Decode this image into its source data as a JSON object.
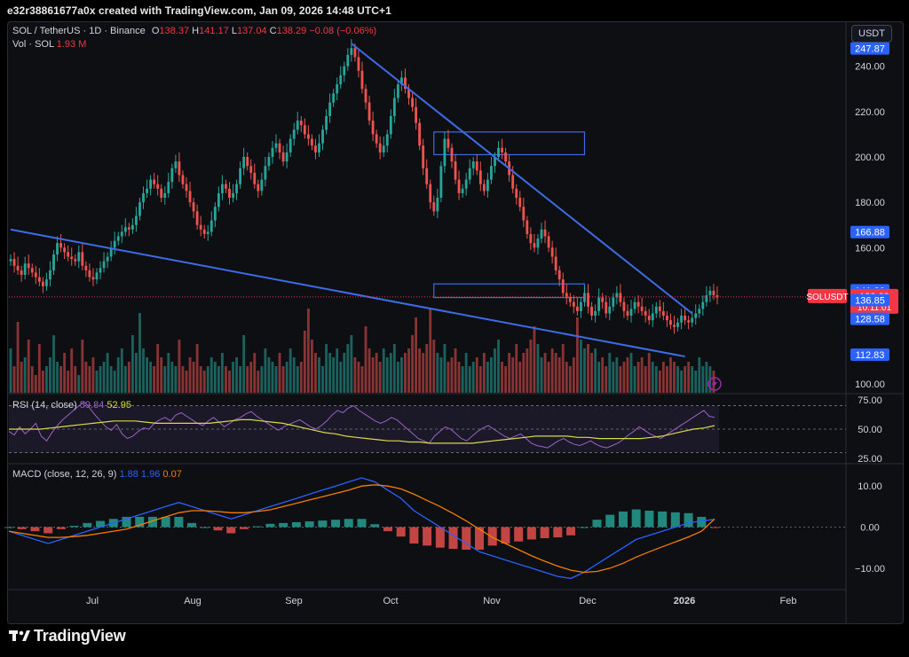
{
  "header": {
    "text": "e32r38861677a0x created with TradingView.com, Jan 09, 2026 14:48 UTC+1"
  },
  "footer": {
    "brand": "TradingView"
  },
  "legend": {
    "symbol": "SOL / TetherUS · 1D · Binance",
    "o_label": "O",
    "o_value": "138.37",
    "h_label": "H",
    "h_value": "141.17",
    "l_label": "L",
    "l_value": "137.04",
    "c_label": "C",
    "c_value": "138.29",
    "change": "−0.08 (−0.06%)",
    "vol_label": "Vol · SOL",
    "vol_value": "1.93 M"
  },
  "currency": "USDT",
  "rsi_legend": {
    "label": "RSI (14, close)",
    "v1": "59.84",
    "v2": "52.95"
  },
  "macd_legend": {
    "label": "MACD (close, 12, 26, 9)",
    "v1": "1.88",
    "v2": "1.96",
    "v3": "0.07"
  },
  "colors": {
    "up": "#26a69a",
    "down": "#ef5350",
    "trend": "#3d6ce8",
    "rsi": "#9a63c9",
    "rsi_ma": "#d9d94a",
    "macd": "#2962ff",
    "signal": "#f57c00",
    "price_tag": "#f23645"
  },
  "chart_data": [
    {
      "type": "candlestick",
      "title": "SOL / TetherUS · 1D · Binance",
      "x_labels": [
        "Jul",
        "Aug",
        "Sep",
        "Oct",
        "Nov",
        "Dec",
        "2026",
        "Feb"
      ],
      "y_ticks": [
        "240.00",
        "220.00",
        "200.00",
        "180.00",
        "160.00",
        "100.00"
      ],
      "price_labels": [
        {
          "text": "247.87",
          "value": 247.87,
          "style": "blue"
        },
        {
          "text": "166.88",
          "value": 166.88,
          "style": "blue"
        },
        {
          "text": "141.20",
          "value": 141.2,
          "style": "blue"
        },
        {
          "text": "139.49",
          "value": 139.49,
          "style": "blue"
        },
        {
          "text": "138.57",
          "value": 138.57,
          "style": "blue"
        },
        {
          "text": "SOLUSDT",
          "value": 138.29,
          "style": "red"
        },
        {
          "text": "136.85",
          "value": 136.85,
          "style": "blue"
        },
        {
          "text": "128.58",
          "value": 128.58,
          "style": "blue"
        },
        {
          "text": "112.83",
          "value": 112.83,
          "style": "blue"
        }
      ],
      "last_price": {
        "symbol": "SOLUSDT",
        "price": "138.29",
        "countdown": "10:11:01"
      },
      "closes": [
        155,
        152,
        150,
        148,
        153,
        151,
        149,
        147,
        145,
        143,
        146,
        150,
        157,
        162,
        160,
        158,
        156,
        155,
        154,
        158,
        152,
        150,
        147,
        146,
        149,
        151,
        154,
        156,
        160,
        163,
        165,
        167,
        169,
        168,
        170,
        174,
        180,
        184,
        186,
        190,
        188,
        186,
        182,
        184,
        189,
        195,
        198,
        192,
        188,
        185,
        180,
        176,
        170,
        168,
        166,
        167,
        172,
        178,
        184,
        188,
        186,
        182,
        184,
        188,
        195,
        200,
        196,
        193,
        188,
        185,
        190,
        196,
        200,
        204,
        206,
        202,
        198,
        202,
        208,
        212,
        216,
        214,
        210,
        208,
        205,
        202,
        206,
        212,
        218,
        224,
        228,
        232,
        236,
        240,
        245,
        248,
        244,
        238,
        230,
        224,
        216,
        210,
        206,
        202,
        205,
        210,
        218,
        226,
        232,
        235,
        230,
        226,
        222,
        215,
        205,
        195,
        188,
        180,
        176,
        182,
        196,
        208,
        204,
        198,
        190,
        184,
        186,
        190,
        195,
        198,
        194,
        188,
        185,
        190,
        196,
        200,
        204,
        202,
        198,
        192,
        186,
        182,
        178,
        172,
        166,
        162,
        160,
        164,
        168,
        165,
        160,
        156,
        150,
        146,
        140,
        138,
        136,
        134,
        132,
        136,
        140,
        134,
        130,
        132,
        138,
        136,
        131,
        134,
        138,
        140,
        136,
        132,
        130,
        133,
        136,
        134,
        132,
        130,
        128,
        131,
        134,
        132,
        130,
        128,
        126,
        125,
        127,
        130,
        128,
        127,
        129,
        131,
        133,
        136,
        139,
        141,
        139,
        138
      ],
      "volume_levels": [
        0.5,
        0.3,
        0.8,
        0.35,
        0.4,
        0.6,
        0.3,
        0.2,
        0.55,
        0.25,
        0.3,
        0.4,
        0.65,
        0.35,
        0.3,
        0.45,
        0.25,
        0.5,
        0.3,
        0.2,
        0.6,
        0.35,
        0.3,
        0.4,
        0.25,
        0.3,
        0.35,
        0.45,
        0.3,
        0.25,
        0.4,
        0.5,
        0.3,
        0.35,
        0.65,
        0.45,
        0.9,
        0.5,
        0.4,
        0.35,
        0.3,
        0.55,
        0.4,
        0.3,
        0.45,
        0.35,
        0.3,
        0.6,
        0.3,
        0.25,
        0.4,
        0.35,
        0.55,
        0.3,
        0.25,
        0.3,
        0.4,
        0.35,
        0.3,
        0.45,
        0.3,
        0.25,
        0.35,
        0.4,
        0.3,
        0.65,
        0.3,
        0.35,
        0.45,
        0.25,
        0.3,
        0.5,
        0.4,
        0.35,
        0.3,
        0.45,
        0.3,
        0.35,
        0.5,
        0.4,
        0.3,
        0.35,
        0.7,
        0.95,
        0.6,
        0.45,
        0.4,
        0.3,
        0.55,
        0.45,
        0.4,
        0.5,
        0.35,
        0.45,
        0.55,
        0.65,
        0.4,
        0.35,
        0.3,
        0.75,
        0.5,
        0.4,
        0.45,
        0.35,
        0.5,
        0.4,
        0.45,
        0.55,
        0.35,
        0.4,
        0.45,
        0.5,
        0.65,
        0.85,
        0.5,
        0.45,
        0.55,
        0.95,
        0.6,
        0.45,
        0.4,
        0.55,
        0.35,
        0.4,
        0.5,
        0.35,
        0.3,
        0.45,
        0.3,
        0.35,
        0.4,
        0.3,
        0.45,
        0.35,
        0.4,
        0.5,
        0.6,
        0.35,
        0.3,
        0.45,
        0.4,
        0.55,
        0.35,
        0.45,
        0.5,
        0.6,
        0.75,
        0.55,
        0.4,
        0.45,
        0.35,
        0.5,
        0.45,
        0.4,
        0.55,
        0.35,
        0.3,
        0.4,
        0.85,
        0.6,
        0.5,
        0.55,
        0.45,
        0.5,
        0.35,
        0.4,
        0.3,
        0.45,
        0.35,
        0.4,
        0.3,
        0.35,
        0.4,
        0.45,
        0.3,
        0.35,
        0.4,
        0.3,
        0.45,
        0.35,
        0.3,
        0.25,
        0.35,
        0.3,
        0.4,
        0.35,
        0.3,
        0.25,
        0.3,
        0.35,
        0.3,
        0.25,
        0.4,
        0.3,
        0.35,
        0.3,
        0.25
      ],
      "trendlines": [
        {
          "name": "upper-trendline",
          "from": [
            95,
            250
          ],
          "to": [
            190,
            131
          ]
        },
        {
          "name": "lower-trendline",
          "from": [
            0,
            168
          ],
          "to": [
            188,
            112
          ]
        }
      ],
      "zones": [
        {
          "name": "upper-zone",
          "from_index": 118,
          "to_index": 160,
          "low": 201,
          "high": 211
        },
        {
          "name": "lower-zone",
          "from_index": 118,
          "to_index": 160,
          "low": 138,
          "high": 144
        }
      ],
      "ylim": [
        96,
        252
      ]
    },
    {
      "type": "line",
      "title": "RSI (14, close)",
      "y_ticks": [
        "75.00",
        "50.00",
        "25.00"
      ],
      "ylim": [
        22,
        78
      ],
      "series": [
        {
          "name": "RSI",
          "values": [
            48,
            45,
            52,
            46,
            50,
            55,
            44,
            40,
            47,
            53,
            58,
            62,
            66,
            70,
            73,
            68,
            62,
            57,
            52,
            49,
            54,
            46,
            42,
            44,
            48,
            51,
            50,
            55,
            58,
            60,
            57,
            62,
            64,
            61,
            58,
            55,
            53,
            57,
            60,
            56,
            52,
            55,
            58,
            60,
            63,
            65,
            61,
            58,
            55,
            52,
            49,
            52,
            54,
            56,
            58,
            55,
            52,
            50,
            53,
            57,
            62,
            66,
            64,
            68,
            70,
            66,
            63,
            60,
            57,
            55,
            57,
            60,
            58,
            54,
            50,
            46,
            42,
            40,
            38,
            44,
            48,
            52,
            50,
            46,
            42,
            40,
            44,
            48,
            51,
            53,
            50,
            47,
            44,
            42,
            44,
            46,
            42,
            38,
            36,
            35,
            34,
            37,
            40,
            42,
            39,
            37,
            36,
            38,
            40,
            37,
            35,
            34,
            36,
            38,
            41,
            45,
            48,
            52,
            49,
            46,
            44,
            42,
            45,
            48,
            51,
            54,
            57,
            60,
            63,
            66,
            61,
            60
          ]
        },
        {
          "name": "RSI MA",
          "values": [
            50,
            50,
            50,
            50,
            51,
            52,
            53,
            54,
            55,
            56,
            57,
            57,
            57,
            56,
            55,
            55,
            55,
            55,
            55,
            55,
            56,
            57,
            58,
            58,
            57,
            56,
            55,
            53,
            51,
            49,
            47,
            46,
            44,
            43,
            42,
            41,
            40,
            40,
            39,
            39,
            38,
            38,
            38,
            38,
            38,
            39,
            40,
            41,
            42,
            43,
            44,
            44,
            44,
            44,
            43,
            43,
            42,
            42,
            42,
            42,
            42,
            43,
            44,
            46,
            48,
            50,
            51,
            53
          ]
        }
      ]
    },
    {
      "type": "bar+line",
      "title": "MACD (close, 12, 26, 9)",
      "y_ticks": [
        "10.00",
        "0.00",
        "−10.00"
      ],
      "ylim": [
        -15,
        15
      ],
      "series": [
        {
          "name": "MACD",
          "values": [
            -1,
            -2,
            -3,
            -4,
            -3,
            -2,
            -1,
            0,
            1,
            2,
            3,
            4,
            5,
            6,
            5,
            4,
            3,
            2,
            3,
            4,
            5,
            6,
            7,
            8,
            9,
            10,
            11,
            12,
            11,
            9,
            7,
            4,
            2,
            0,
            -2,
            -4,
            -6,
            -7,
            -8,
            -9,
            -10,
            -11,
            -12,
            -12.5,
            -11,
            -9,
            -7,
            -5,
            -3,
            -2,
            -1,
            0,
            1,
            1.5,
            1.88
          ]
        },
        {
          "name": "Signal",
          "values": [
            -1,
            -1.5,
            -2,
            -2.5,
            -2.5,
            -2.3,
            -2,
            -1.5,
            -1,
            -0.5,
            0.5,
            1.5,
            2.5,
            3.5,
            4,
            4,
            3.8,
            3.5,
            3.5,
            3.8,
            4.2,
            5,
            5.8,
            6.6,
            7.4,
            8.2,
            9,
            10,
            10.3,
            10,
            9.3,
            8,
            6.5,
            5,
            3.3,
            1.5,
            -0.5,
            -2.5,
            -4,
            -5.5,
            -7,
            -8.3,
            -9.5,
            -10.5,
            -11,
            -10.8,
            -10,
            -8.8,
            -7.3,
            -6,
            -4.8,
            -3.6,
            -2.4,
            -1,
            1.96
          ]
        }
      ]
    }
  ]
}
